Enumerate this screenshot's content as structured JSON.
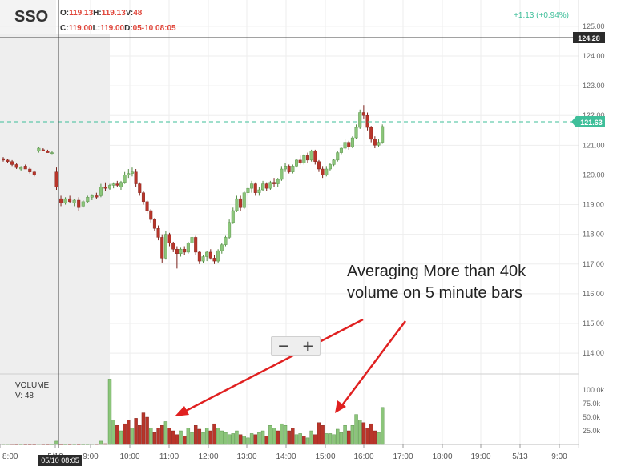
{
  "ticker": "SSO",
  "ohlc": {
    "open_label": "O:",
    "open": "119.13",
    "high_label": "H:",
    "high": "119.13",
    "vol_label": "V:",
    "vol": "48",
    "close_label": "C:",
    "close": "119.00",
    "low_label": "L:",
    "low": "119.00",
    "date_label": "D:",
    "date": "05-10 08:05"
  },
  "change": "+1.13 (+0.94%)",
  "crosshair": {
    "price": "124.28",
    "time": "05/10 08:05"
  },
  "last_price": "121.63",
  "annotation": {
    "line1": "Averaging More than 40k",
    "line2": "volume on 5 minute bars"
  },
  "zoom": {
    "minus": "−",
    "plus": "+"
  },
  "volume_panel": {
    "title": "VOLUME",
    "value": "V: 48"
  },
  "colors": {
    "up": "#8bc57a",
    "down": "#b8352a",
    "dashed": "#3fbf9a",
    "arrow": "#e02020",
    "premarket": "#eeeeee"
  },
  "chart_data": {
    "type": "candlestick",
    "x_ticks": [
      "8:00",
      "5/10",
      "9:00",
      "10:00",
      "11:00",
      "12:00",
      "13:00",
      "14:00",
      "15:00",
      "16:00",
      "17:00",
      "18:00",
      "19:00",
      "5/13",
      "9:00"
    ],
    "price_ticks": [
      "125.00",
      "124.00",
      "123.00",
      "122.00",
      "121.00",
      "120.00",
      "119.00",
      "118.00",
      "117.00",
      "116.00",
      "115.00",
      "114.00"
    ],
    "ylim": [
      113.6,
      125.4
    ],
    "volume_ticks": [
      "100.0k",
      "75.0k",
      "50.0k",
      "25.0k"
    ],
    "volume_ylim": [
      0,
      125000
    ],
    "candles": [
      [
        120.55,
        120.6,
        120.45,
        120.5
      ],
      [
        120.5,
        120.55,
        120.4,
        120.45
      ],
      [
        120.45,
        120.5,
        120.3,
        120.35
      ],
      [
        120.35,
        120.4,
        120.2,
        120.25
      ],
      [
        120.2,
        120.3,
        120.15,
        120.25
      ],
      [
        120.3,
        120.35,
        120.2,
        120.2
      ],
      [
        120.2,
        120.25,
        120.05,
        120.1
      ],
      [
        120.1,
        120.15,
        119.95,
        120.0
      ],
      [
        120.8,
        120.95,
        120.75,
        120.9
      ],
      [
        120.85,
        120.9,
        120.8,
        120.8
      ],
      [
        120.8,
        120.85,
        120.75,
        120.75
      ],
      [
        120.75,
        120.8,
        120.7,
        120.75
      ],
      [
        120.1,
        120.25,
        119.5,
        119.6
      ],
      [
        119.2,
        119.3,
        118.95,
        119.05
      ],
      [
        119.05,
        119.25,
        119.0,
        119.2
      ],
      [
        119.2,
        119.3,
        119.05,
        119.1
      ],
      [
        119.05,
        119.2,
        118.95,
        119.15
      ],
      [
        119.15,
        119.25,
        118.8,
        118.9
      ],
      [
        118.95,
        119.15,
        118.9,
        119.1
      ],
      [
        119.1,
        119.3,
        119.05,
        119.25
      ],
      [
        119.25,
        119.35,
        119.15,
        119.3
      ],
      [
        119.3,
        119.4,
        119.2,
        119.25
      ],
      [
        119.3,
        119.7,
        119.25,
        119.6
      ],
      [
        119.6,
        119.75,
        119.45,
        119.55
      ],
      [
        119.55,
        119.7,
        119.5,
        119.65
      ],
      [
        119.65,
        119.75,
        119.55,
        119.7
      ],
      [
        119.7,
        119.8,
        119.6,
        119.65
      ],
      [
        119.6,
        119.8,
        119.5,
        119.75
      ],
      [
        119.75,
        120.1,
        119.7,
        120.0
      ],
      [
        120.0,
        120.2,
        119.9,
        120.05
      ],
      [
        120.05,
        120.25,
        119.95,
        120.1
      ],
      [
        120.1,
        120.2,
        119.6,
        119.7
      ],
      [
        119.7,
        119.75,
        119.3,
        119.4
      ],
      [
        119.4,
        119.45,
        119.0,
        119.1
      ],
      [
        119.1,
        119.15,
        118.7,
        118.8
      ],
      [
        118.8,
        118.85,
        118.4,
        118.5
      ],
      [
        118.5,
        118.55,
        118.1,
        118.2
      ],
      [
        118.2,
        118.3,
        117.8,
        117.9
      ],
      [
        117.9,
        118.0,
        117.05,
        117.2
      ],
      [
        117.2,
        118.1,
        117.15,
        118.0
      ],
      [
        118.0,
        118.05,
        117.6,
        117.7
      ],
      [
        117.7,
        117.75,
        117.4,
        117.5
      ],
      [
        117.5,
        117.6,
        116.85,
        117.35
      ],
      [
        117.35,
        117.55,
        117.25,
        117.5
      ],
      [
        117.5,
        117.6,
        117.3,
        117.4
      ],
      [
        117.4,
        117.75,
        117.35,
        117.7
      ],
      [
        117.7,
        117.95,
        117.6,
        117.9
      ],
      [
        117.9,
        117.95,
        117.3,
        117.4
      ],
      [
        117.4,
        117.45,
        117.0,
        117.1
      ],
      [
        117.1,
        117.3,
        117.05,
        117.25
      ],
      [
        117.25,
        117.45,
        117.1,
        117.4
      ],
      [
        117.4,
        117.5,
        117.15,
        117.2
      ],
      [
        117.2,
        117.3,
        117.0,
        117.1
      ],
      [
        117.1,
        117.5,
        117.05,
        117.45
      ],
      [
        117.45,
        117.7,
        117.35,
        117.65
      ],
      [
        117.65,
        117.95,
        117.6,
        117.9
      ],
      [
        117.9,
        118.5,
        117.85,
        118.4
      ],
      [
        118.4,
        118.9,
        118.35,
        118.8
      ],
      [
        118.8,
        119.3,
        118.75,
        119.2
      ],
      [
        119.2,
        119.3,
        118.8,
        118.9
      ],
      [
        118.9,
        119.45,
        118.85,
        119.4
      ],
      [
        119.4,
        119.6,
        119.3,
        119.55
      ],
      [
        119.55,
        119.8,
        119.4,
        119.7
      ],
      [
        119.7,
        119.75,
        119.3,
        119.4
      ],
      [
        119.4,
        119.6,
        119.3,
        119.5
      ],
      [
        119.5,
        119.8,
        119.45,
        119.7
      ],
      [
        119.7,
        119.75,
        119.45,
        119.55
      ],
      [
        119.55,
        119.8,
        119.5,
        119.75
      ],
      [
        119.75,
        119.9,
        119.6,
        119.7
      ],
      [
        119.7,
        119.9,
        119.6,
        119.85
      ],
      [
        119.85,
        120.3,
        119.8,
        120.2
      ],
      [
        120.2,
        120.4,
        120.1,
        120.3
      ],
      [
        120.3,
        120.35,
        120.05,
        120.1
      ],
      [
        120.1,
        120.35,
        120.05,
        120.3
      ],
      [
        120.3,
        120.55,
        120.25,
        120.5
      ],
      [
        120.5,
        120.65,
        120.35,
        120.4
      ],
      [
        120.4,
        120.7,
        120.35,
        120.65
      ],
      [
        120.65,
        120.75,
        120.4,
        120.5
      ],
      [
        120.5,
        120.85,
        120.45,
        120.8
      ],
      [
        120.8,
        120.85,
        120.35,
        120.45
      ],
      [
        120.45,
        120.5,
        120.1,
        120.2
      ],
      [
        120.2,
        120.3,
        119.9,
        120.0
      ],
      [
        120.0,
        120.3,
        119.95,
        120.2
      ],
      [
        120.2,
        120.4,
        120.15,
        120.35
      ],
      [
        120.35,
        120.55,
        120.3,
        120.5
      ],
      [
        120.5,
        120.8,
        120.45,
        120.75
      ],
      [
        120.75,
        120.95,
        120.7,
        120.9
      ],
      [
        120.9,
        121.2,
        120.85,
        121.1
      ],
      [
        121.1,
        121.15,
        120.85,
        120.95
      ],
      [
        120.95,
        121.3,
        120.9,
        121.25
      ],
      [
        121.25,
        121.7,
        121.2,
        121.6
      ],
      [
        121.6,
        122.2,
        121.55,
        122.1
      ],
      [
        122.1,
        122.35,
        121.9,
        122.0
      ],
      [
        122.0,
        122.1,
        121.5,
        121.6
      ],
      [
        121.6,
        121.65,
        121.1,
        121.2
      ],
      [
        121.2,
        121.3,
        120.9,
        121.0
      ],
      [
        121.0,
        121.2,
        120.95,
        121.1
      ],
      [
        121.1,
        121.7,
        121.05,
        121.63
      ]
    ],
    "volumes": [
      [
        800,
        1
      ],
      [
        800,
        1
      ],
      [
        800,
        0
      ],
      [
        600,
        0
      ],
      [
        600,
        1
      ],
      [
        500,
        0
      ],
      [
        500,
        0
      ],
      [
        500,
        0
      ],
      [
        1000,
        1
      ],
      [
        700,
        0
      ],
      [
        600,
        0
      ],
      [
        500,
        1
      ],
      [
        6000,
        1
      ],
      [
        500,
        0
      ],
      [
        400,
        1
      ],
      [
        500,
        0
      ],
      [
        600,
        1
      ],
      [
        500,
        0
      ],
      [
        400,
        1
      ],
      [
        600,
        1
      ],
      [
        1000,
        1
      ],
      [
        800,
        0
      ],
      [
        6000,
        1
      ],
      [
        1500,
        0
      ],
      [
        120000,
        1
      ],
      [
        45000,
        1
      ],
      [
        35000,
        0
      ],
      [
        25000,
        1
      ],
      [
        38000,
        0
      ],
      [
        45000,
        0
      ],
      [
        30000,
        1
      ],
      [
        48000,
        0
      ],
      [
        35000,
        0
      ],
      [
        58000,
        0
      ],
      [
        50000,
        0
      ],
      [
        30000,
        1
      ],
      [
        22000,
        0
      ],
      [
        30000,
        0
      ],
      [
        35000,
        0
      ],
      [
        42000,
        1
      ],
      [
        30000,
        0
      ],
      [
        25000,
        0
      ],
      [
        18000,
        0
      ],
      [
        25000,
        1
      ],
      [
        15000,
        0
      ],
      [
        30000,
        1
      ],
      [
        22000,
        1
      ],
      [
        35000,
        0
      ],
      [
        28000,
        0
      ],
      [
        22000,
        1
      ],
      [
        30000,
        1
      ],
      [
        25000,
        0
      ],
      [
        38000,
        0
      ],
      [
        30000,
        1
      ],
      [
        25000,
        1
      ],
      [
        22000,
        1
      ],
      [
        18000,
        1
      ],
      [
        20000,
        1
      ],
      [
        25000,
        1
      ],
      [
        18000,
        0
      ],
      [
        15000,
        1
      ],
      [
        12000,
        1
      ],
      [
        20000,
        1
      ],
      [
        18000,
        0
      ],
      [
        22000,
        1
      ],
      [
        25000,
        1
      ],
      [
        15000,
        0
      ],
      [
        35000,
        1
      ],
      [
        30000,
        1
      ],
      [
        25000,
        0
      ],
      [
        38000,
        1
      ],
      [
        35000,
        1
      ],
      [
        25000,
        0
      ],
      [
        30000,
        0
      ],
      [
        18000,
        1
      ],
      [
        20000,
        1
      ],
      [
        15000,
        0
      ],
      [
        12000,
        1
      ],
      [
        25000,
        1
      ],
      [
        18000,
        0
      ],
      [
        40000,
        0
      ],
      [
        35000,
        0
      ],
      [
        20000,
        1
      ],
      [
        20000,
        1
      ],
      [
        18000,
        1
      ],
      [
        28000,
        1
      ],
      [
        22000,
        1
      ],
      [
        35000,
        1
      ],
      [
        25000,
        0
      ],
      [
        35000,
        1
      ],
      [
        55000,
        1
      ],
      [
        45000,
        1
      ],
      [
        40000,
        0
      ],
      [
        30000,
        0
      ],
      [
        38000,
        0
      ],
      [
        25000,
        0
      ],
      [
        22000,
        1
      ],
      [
        68000,
        1
      ]
    ]
  }
}
